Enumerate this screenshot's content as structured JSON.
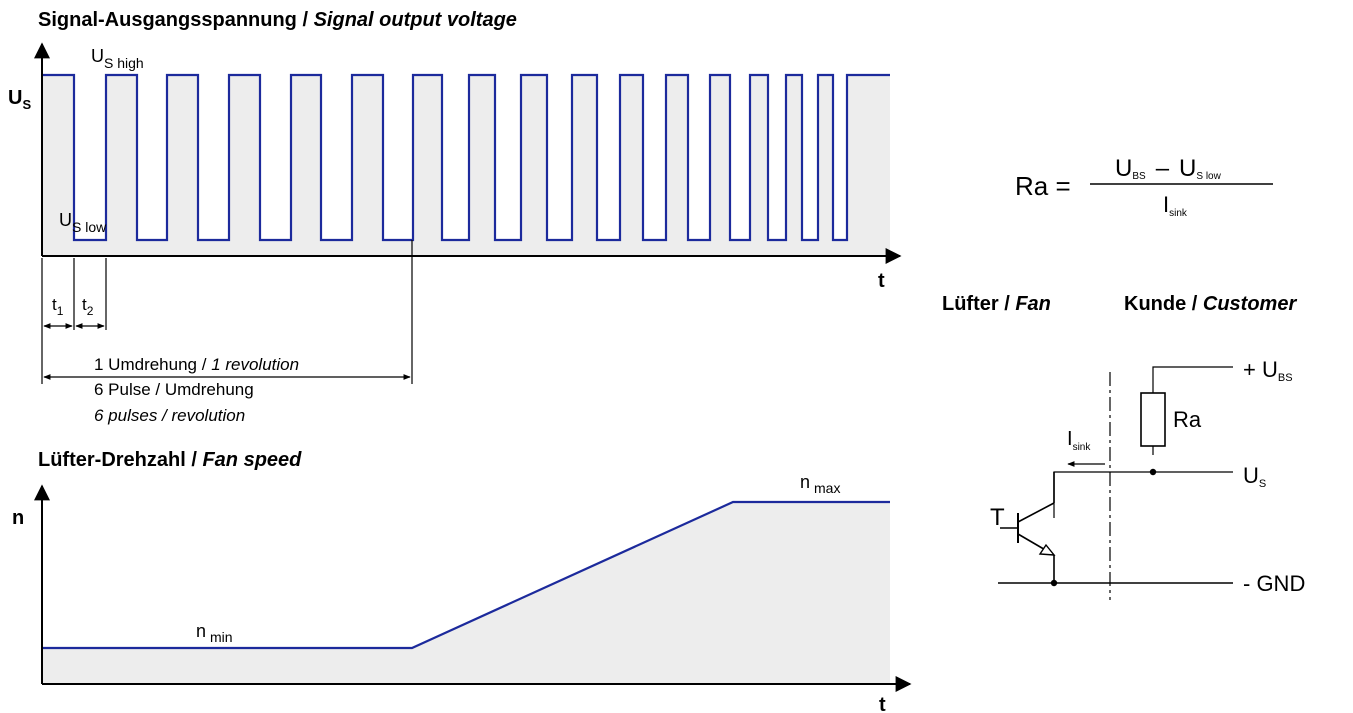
{
  "signal_chart": {
    "title_de": "Signal-Ausgangsspannung / ",
    "title_en": "Signal output voltage",
    "y_label": "U",
    "y_label_sub": "S",
    "x_label": "t",
    "high_label": "U",
    "high_label_sub": "S high",
    "low_label": "U",
    "low_label_sub": "S low",
    "t1_label": "t",
    "t1_sub": "1",
    "t2_label": "t",
    "t2_sub": "2",
    "rev_line1_de": "1 Umdrehung / ",
    "rev_line1_en": "1 revolution",
    "rev_line2": "6 Pulse / Umdrehung",
    "rev_line3": "6 pulses / revolution"
  },
  "speed_chart": {
    "title_de": "Lüfter-Drehzahl / ",
    "title_en": "Fan speed",
    "y_label": "n",
    "x_label": "t",
    "min_label": "n",
    "min_sub": "min",
    "max_label": "n",
    "max_sub": "max"
  },
  "formula": {
    "lhs": "Ra =",
    "num_a": "U",
    "num_a_sub": "BS",
    "minus": "–",
    "num_b": "U",
    "num_b_sub": "S low",
    "den": "I",
    "den_sub": "sink"
  },
  "circuit": {
    "fan_label_de": "Lüfter / ",
    "fan_label_en": "Fan",
    "customer_label_de": "Kunde / ",
    "customer_label_en": "Customer",
    "ubs_label": "+ U",
    "ubs_sub": "BS",
    "ra_label": "Ra",
    "isink_label": "I",
    "isink_sub": "sink",
    "us_label": "U",
    "us_sub": "S",
    "t_label": "T",
    "gnd_label": "- GND"
  },
  "colors": {
    "signal": "#1c2a9c",
    "fill": "#ededed",
    "ink": "#000000"
  }
}
